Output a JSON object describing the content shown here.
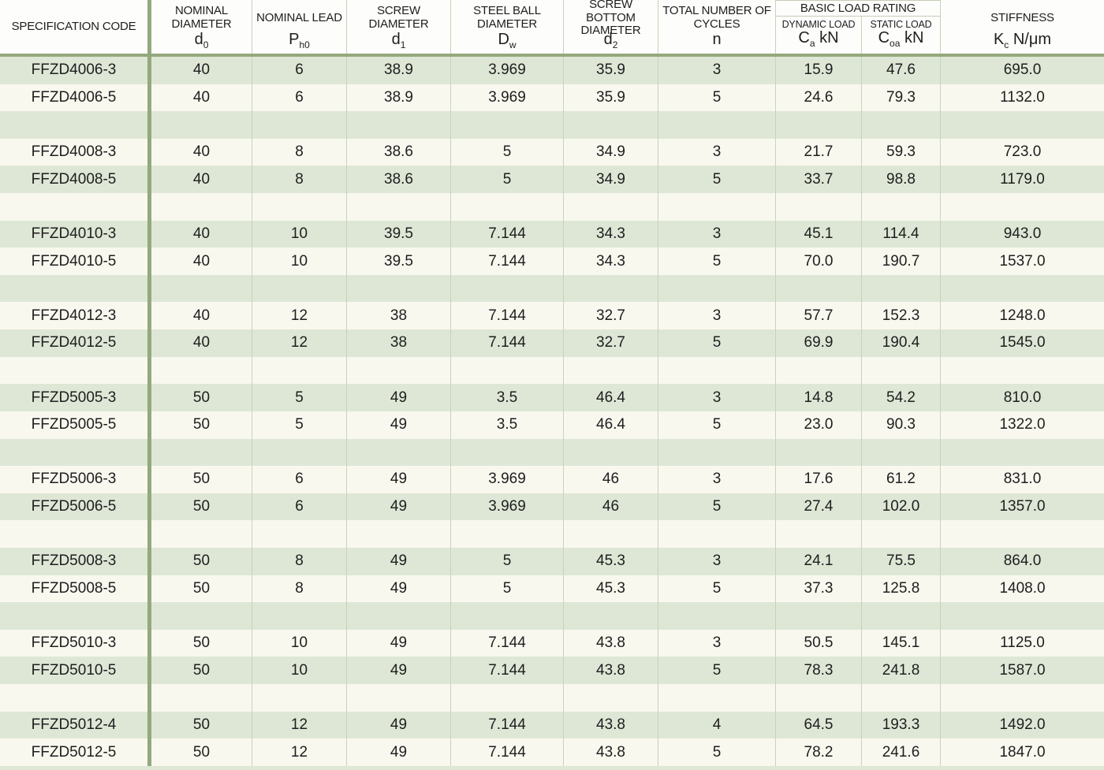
{
  "table": {
    "group": {
      "label": "BASIC LOAD RATING"
    },
    "columns": [
      {
        "id": "spec",
        "label": "SPECIFICATION CODE",
        "sym": "",
        "sub": "",
        "suffix": ""
      },
      {
        "id": "d0",
        "label": "NOMINAL DIAMETER",
        "sym": "d",
        "sub": "0",
        "suffix": ""
      },
      {
        "id": "ph0",
        "label": "NOMINAL LEAD",
        "sym": "P",
        "sub": "h0",
        "suffix": ""
      },
      {
        "id": "d1",
        "label": "SCREW DIAMETER",
        "sym": "d",
        "sub": "1",
        "suffix": ""
      },
      {
        "id": "dw",
        "label": "STEEL BALL DIAMETER",
        "sym": "D",
        "sub": "w",
        "suffix": ""
      },
      {
        "id": "d2",
        "label": "SCREW BOTTOM DIAMETER",
        "sym": "d",
        "sub": "2",
        "suffix": ""
      },
      {
        "id": "n",
        "label": "TOTAL NUMBER OF CYCLES",
        "sym": "n",
        "sub": "",
        "suffix": ""
      },
      {
        "id": "ca",
        "label": "DYNAMIC LOAD",
        "sym": "C",
        "sub": "a",
        "suffix": " kN"
      },
      {
        "id": "coa",
        "label": "STATIC LOAD",
        "sym": "C",
        "sub": "oa",
        "suffix": " kN"
      },
      {
        "id": "kc",
        "label": "STIFFNESS",
        "sym": "K",
        "sub": "c",
        "suffix": " N/μm"
      }
    ],
    "rows": [
      [
        "FFZD4006-3",
        "40",
        "6",
        "38.9",
        "3.969",
        "35.9",
        "3",
        "15.9",
        "47.6",
        "695.0"
      ],
      [
        "FFZD4006-5",
        "40",
        "6",
        "38.9",
        "3.969",
        "35.9",
        "5",
        "24.6",
        "79.3",
        "1132.0"
      ],
      null,
      [
        "FFZD4008-3",
        "40",
        "8",
        "38.6",
        "5",
        "34.9",
        "3",
        "21.7",
        "59.3",
        "723.0"
      ],
      [
        "FFZD4008-5",
        "40",
        "8",
        "38.6",
        "5",
        "34.9",
        "5",
        "33.7",
        "98.8",
        "1179.0"
      ],
      null,
      [
        "FFZD4010-3",
        "40",
        "10",
        "39.5",
        "7.144",
        "34.3",
        "3",
        "45.1",
        "114.4",
        "943.0"
      ],
      [
        "FFZD4010-5",
        "40",
        "10",
        "39.5",
        "7.144",
        "34.3",
        "5",
        "70.0",
        "190.7",
        "1537.0"
      ],
      null,
      [
        "FFZD4012-3",
        "40",
        "12",
        "38",
        "7.144",
        "32.7",
        "3",
        "57.7",
        "152.3",
        "1248.0"
      ],
      [
        "FFZD4012-5",
        "40",
        "12",
        "38",
        "7.144",
        "32.7",
        "5",
        "69.9",
        "190.4",
        "1545.0"
      ],
      null,
      [
        "FFZD5005-3",
        "50",
        "5",
        "49",
        "3.5",
        "46.4",
        "3",
        "14.8",
        "54.2",
        "810.0"
      ],
      [
        "FFZD5005-5",
        "50",
        "5",
        "49",
        "3.5",
        "46.4",
        "5",
        "23.0",
        "90.3",
        "1322.0"
      ],
      null,
      [
        "FFZD5006-3",
        "50",
        "6",
        "49",
        "3.969",
        "46",
        "3",
        "17.6",
        "61.2",
        "831.0"
      ],
      [
        "FFZD5006-5",
        "50",
        "6",
        "49",
        "3.969",
        "46",
        "5",
        "27.4",
        "102.0",
        "1357.0"
      ],
      null,
      [
        "FFZD5008-3",
        "50",
        "8",
        "49",
        "5",
        "45.3",
        "3",
        "24.1",
        "75.5",
        "864.0"
      ],
      [
        "FFZD5008-5",
        "50",
        "8",
        "49",
        "5",
        "45.3",
        "5",
        "37.3",
        "125.8",
        "1408.0"
      ],
      null,
      [
        "FFZD5010-3",
        "50",
        "10",
        "49",
        "7.144",
        "43.8",
        "3",
        "50.5",
        "145.1",
        "1125.0"
      ],
      [
        "FFZD5010-5",
        "50",
        "10",
        "49",
        "7.144",
        "43.8",
        "5",
        "78.3",
        "241.8",
        "1587.0"
      ],
      null,
      [
        "FFZD5012-4",
        "50",
        "12",
        "49",
        "7.144",
        "43.8",
        "4",
        "64.5",
        "193.3",
        "1492.0"
      ],
      [
        "FFZD5012-5",
        "50",
        "12",
        "49",
        "7.144",
        "43.8",
        "5",
        "78.2",
        "241.6",
        "1847.0"
      ]
    ]
  },
  "colors": {
    "row_green": "#dee7d6",
    "row_white": "#f9f8ef",
    "header_bg": "#fdfdfb",
    "line_thin": "#c6d3ba",
    "line_thick": "#95a97d",
    "underline": "#93a97c",
    "group_border": "#c2ccb6",
    "text": "#1e1e1e"
  }
}
